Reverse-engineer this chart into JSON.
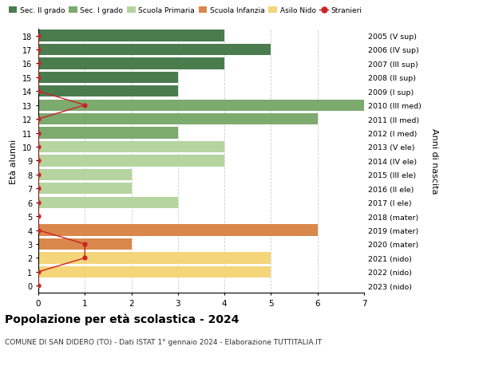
{
  "ages": [
    18,
    17,
    16,
    15,
    14,
    13,
    12,
    11,
    10,
    9,
    8,
    7,
    6,
    5,
    4,
    3,
    2,
    1,
    0
  ],
  "right_labels": [
    "2005 (V sup)",
    "2006 (IV sup)",
    "2007 (III sup)",
    "2008 (II sup)",
    "2009 (I sup)",
    "2010 (III med)",
    "2011 (II med)",
    "2012 (I med)",
    "2013 (V ele)",
    "2014 (IV ele)",
    "2015 (III ele)",
    "2016 (II ele)",
    "2017 (I ele)",
    "2018 (mater)",
    "2019 (mater)",
    "2020 (mater)",
    "2021 (nido)",
    "2022 (nido)",
    "2023 (nido)"
  ],
  "bar_values": [
    4,
    5,
    4,
    3,
    3,
    7,
    6,
    3,
    4,
    4,
    2,
    2,
    3,
    0,
    6,
    2,
    5,
    5,
    0
  ],
  "bar_colors": [
    "#4a7c4e",
    "#4a7c4e",
    "#4a7c4e",
    "#4a7c4e",
    "#4a7c4e",
    "#7daa6f",
    "#7daa6f",
    "#7daa6f",
    "#b5d4a0",
    "#b5d4a0",
    "#b5d4a0",
    "#b5d4a0",
    "#b5d4a0",
    "#d9874a",
    "#d9874a",
    "#d9874a",
    "#f5d57a",
    "#f5d57a",
    "#f5d57a"
  ],
  "stranieri_dots": [
    {
      "age": 18,
      "val": 0
    },
    {
      "age": 17,
      "val": 0
    },
    {
      "age": 16,
      "val": 0
    },
    {
      "age": 15,
      "val": 0
    },
    {
      "age": 14,
      "val": 0
    },
    {
      "age": 13,
      "val": 1
    },
    {
      "age": 12,
      "val": 0
    },
    {
      "age": 11,
      "val": 0
    },
    {
      "age": 10,
      "val": 0
    },
    {
      "age": 9,
      "val": 0
    },
    {
      "age": 8,
      "val": 0
    },
    {
      "age": 7,
      "val": 0
    },
    {
      "age": 6,
      "val": 0
    },
    {
      "age": 5,
      "val": 0
    },
    {
      "age": 4,
      "val": 0
    },
    {
      "age": 3,
      "val": 1
    },
    {
      "age": 2,
      "val": 1
    },
    {
      "age": 1,
      "val": 0
    },
    {
      "age": 0,
      "val": 0
    }
  ],
  "legend_labels": [
    "Sec. II grado",
    "Sec. I grado",
    "Scuola Primaria",
    "Scuola Infanzia",
    "Asilo Nido",
    "Stranieri"
  ],
  "legend_colors": [
    "#4a7c4e",
    "#7daa6f",
    "#b5d4a0",
    "#d9874a",
    "#f5d57a",
    "#cc2222"
  ],
  "ylabel_left": "Età alunni",
  "ylabel_right": "Anni di nascita",
  "title": "Popolazione per età scolastica - 2024",
  "subtitle": "COMUNE DI SAN DIDERO (TO) - Dati ISTAT 1° gennaio 2024 - Elaborazione TUTTITALIA.IT",
  "xlim": [
    0,
    7
  ],
  "background_color": "#ffffff",
  "grid_color": "#cccccc"
}
